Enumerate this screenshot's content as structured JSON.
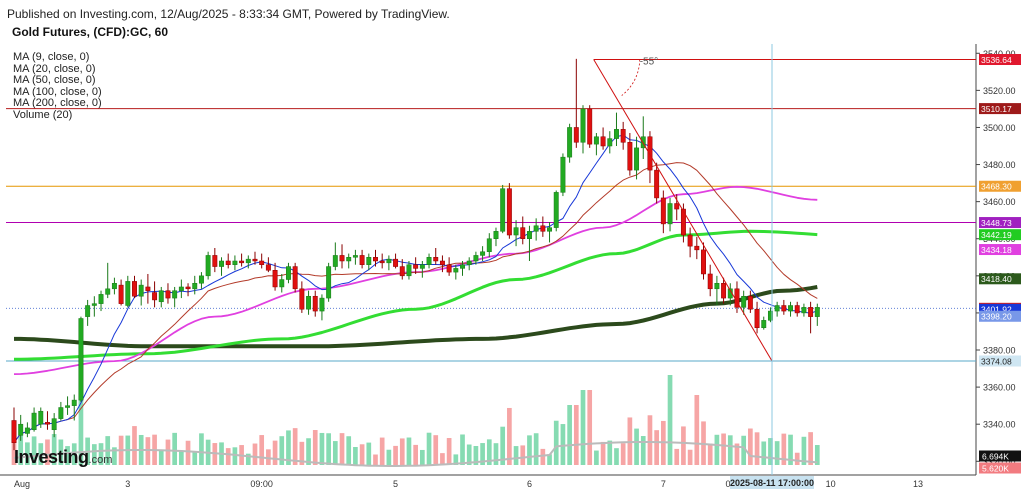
{
  "header": {
    "published": "Published on Investing.com, 12/Aug/2025 - 8:33:34 GMT, Powered by TradingView.",
    "instrument": "Gold Futures, (CFD):GC, 60"
  },
  "legend": [
    "MA (9, close, 0)",
    "MA (20, close, 0)",
    "MA (50, close, 0)",
    "MA (100, close, 0)",
    "MA (200, close, 0)",
    "Volume (20)"
  ],
  "brand": {
    "name": "Investing",
    "suffix": ".com"
  },
  "chart_data": {
    "type": "candlestick",
    "y_ticks": [
      "3540.00",
      "3520.00",
      "3500.00",
      "3480.00",
      "3460.00",
      "3440.00",
      "3420.00",
      "3400.00",
      "3380.00",
      "3360.00",
      "3340.00",
      "3320.00"
    ],
    "x_ticks": [
      "Aug",
      "3",
      "09:00",
      "5",
      "6",
      "7",
      "8",
      "10",
      "0",
      "13"
    ],
    "ylim": [
      3318,
      3545
    ],
    "candles": [
      {
        "o": 3342,
        "h": 3349,
        "l": 3326,
        "c": 3330
      },
      {
        "o": 3334,
        "h": 3345,
        "l": 3331,
        "c": 3340
      },
      {
        "o": 3335,
        "h": 3341,
        "l": 3333,
        "c": 3338
      },
      {
        "o": 3337,
        "h": 3349,
        "l": 3336,
        "c": 3346
      },
      {
        "o": 3340,
        "h": 3349,
        "l": 3338,
        "c": 3347
      },
      {
        "o": 3341,
        "h": 3347,
        "l": 3337,
        "c": 3340
      },
      {
        "o": 3337,
        "h": 3346,
        "l": 3333,
        "c": 3343
      },
      {
        "o": 3343,
        "h": 3352,
        "l": 3342,
        "c": 3349
      },
      {
        "o": 3349,
        "h": 3355,
        "l": 3345,
        "c": 3350
      },
      {
        "o": 3350,
        "h": 3356,
        "l": 3342,
        "c": 3353
      },
      {
        "o": 3353,
        "h": 3398,
        "l": 3352,
        "c": 3397
      },
      {
        "o": 3398,
        "h": 3407,
        "l": 3393,
        "c": 3404
      },
      {
        "o": 3404,
        "h": 3409,
        "l": 3398,
        "c": 3405
      },
      {
        "o": 3405,
        "h": 3412,
        "l": 3401,
        "c": 3410
      },
      {
        "o": 3410,
        "h": 3427,
        "l": 3408,
        "c": 3413
      },
      {
        "o": 3413,
        "h": 3419,
        "l": 3410,
        "c": 3416
      },
      {
        "o": 3415,
        "h": 3418,
        "l": 3404,
        "c": 3405
      },
      {
        "o": 3404,
        "h": 3420,
        "l": 3403,
        "c": 3417
      },
      {
        "o": 3417,
        "h": 3420,
        "l": 3408,
        "c": 3409
      },
      {
        "o": 3409,
        "h": 3418,
        "l": 3404,
        "c": 3415
      },
      {
        "o": 3414,
        "h": 3421,
        "l": 3405,
        "c": 3412
      },
      {
        "o": 3411,
        "h": 3417,
        "l": 3403,
        "c": 3407
      },
      {
        "o": 3406,
        "h": 3414,
        "l": 3403,
        "c": 3412
      },
      {
        "o": 3412,
        "h": 3416,
        "l": 3405,
        "c": 3408
      },
      {
        "o": 3408,
        "h": 3414,
        "l": 3403,
        "c": 3412
      },
      {
        "o": 3412,
        "h": 3418,
        "l": 3408,
        "c": 3414
      },
      {
        "o": 3414,
        "h": 3416,
        "l": 3409,
        "c": 3413
      },
      {
        "o": 3413,
        "h": 3420,
        "l": 3410,
        "c": 3416
      },
      {
        "o": 3416,
        "h": 3422,
        "l": 3413,
        "c": 3420
      },
      {
        "o": 3420,
        "h": 3433,
        "l": 3418,
        "c": 3431
      },
      {
        "o": 3431,
        "h": 3435,
        "l": 3422,
        "c": 3425
      },
      {
        "o": 3425,
        "h": 3430,
        "l": 3420,
        "c": 3428
      },
      {
        "o": 3428,
        "h": 3432,
        "l": 3424,
        "c": 3426
      },
      {
        "o": 3426,
        "h": 3431,
        "l": 3423,
        "c": 3428
      },
      {
        "o": 3428,
        "h": 3432,
        "l": 3425,
        "c": 3427
      },
      {
        "o": 3427,
        "h": 3431,
        "l": 3424,
        "c": 3429
      },
      {
        "o": 3429,
        "h": 3433,
        "l": 3426,
        "c": 3428
      },
      {
        "o": 3428,
        "h": 3432,
        "l": 3424,
        "c": 3426
      },
      {
        "o": 3426,
        "h": 3430,
        "l": 3422,
        "c": 3423
      },
      {
        "o": 3423,
        "h": 3427,
        "l": 3412,
        "c": 3414
      },
      {
        "o": 3414,
        "h": 3421,
        "l": 3411,
        "c": 3418
      },
      {
        "o": 3418,
        "h": 3427,
        "l": 3416,
        "c": 3425
      },
      {
        "o": 3425,
        "h": 3427,
        "l": 3411,
        "c": 3413
      },
      {
        "o": 3413,
        "h": 3417,
        "l": 3400,
        "c": 3402
      },
      {
        "o": 3402,
        "h": 3412,
        "l": 3399,
        "c": 3409
      },
      {
        "o": 3409,
        "h": 3412,
        "l": 3398,
        "c": 3401
      },
      {
        "o": 3401,
        "h": 3410,
        "l": 3396,
        "c": 3408
      },
      {
        "o": 3408,
        "h": 3427,
        "l": 3406,
        "c": 3425
      },
      {
        "o": 3425,
        "h": 3438,
        "l": 3423,
        "c": 3431
      },
      {
        "o": 3431,
        "h": 3437,
        "l": 3424,
        "c": 3428
      },
      {
        "o": 3428,
        "h": 3432,
        "l": 3424,
        "c": 3430
      },
      {
        "o": 3430,
        "h": 3434,
        "l": 3426,
        "c": 3431
      },
      {
        "o": 3431,
        "h": 3434,
        "l": 3424,
        "c": 3426
      },
      {
        "o": 3426,
        "h": 3432,
        "l": 3423,
        "c": 3430
      },
      {
        "o": 3430,
        "h": 3434,
        "l": 3425,
        "c": 3428
      },
      {
        "o": 3428,
        "h": 3432,
        "l": 3424,
        "c": 3427
      },
      {
        "o": 3427,
        "h": 3431,
        "l": 3423,
        "c": 3429
      },
      {
        "o": 3429,
        "h": 3432,
        "l": 3424,
        "c": 3425
      },
      {
        "o": 3425,
        "h": 3429,
        "l": 3418,
        "c": 3420
      },
      {
        "o": 3420,
        "h": 3428,
        "l": 3418,
        "c": 3426
      },
      {
        "o": 3426,
        "h": 3430,
        "l": 3421,
        "c": 3424
      },
      {
        "o": 3424,
        "h": 3428,
        "l": 3419,
        "c": 3426
      },
      {
        "o": 3426,
        "h": 3432,
        "l": 3424,
        "c": 3430
      },
      {
        "o": 3430,
        "h": 3435,
        "l": 3426,
        "c": 3428
      },
      {
        "o": 3428,
        "h": 3431,
        "l": 3422,
        "c": 3426
      },
      {
        "o": 3426,
        "h": 3430,
        "l": 3420,
        "c": 3422
      },
      {
        "o": 3422,
        "h": 3426,
        "l": 3418,
        "c": 3424
      },
      {
        "o": 3424,
        "h": 3428,
        "l": 3420,
        "c": 3426
      },
      {
        "o": 3426,
        "h": 3430,
        "l": 3423,
        "c": 3428
      },
      {
        "o": 3428,
        "h": 3433,
        "l": 3426,
        "c": 3431
      },
      {
        "o": 3431,
        "h": 3436,
        "l": 3428,
        "c": 3433
      },
      {
        "o": 3433,
        "h": 3443,
        "l": 3430,
        "c": 3440
      },
      {
        "o": 3440,
        "h": 3446,
        "l": 3436,
        "c": 3444
      },
      {
        "o": 3444,
        "h": 3469,
        "l": 3443,
        "c": 3467
      },
      {
        "o": 3467,
        "h": 3470,
        "l": 3440,
        "c": 3442
      },
      {
        "o": 3442,
        "h": 3450,
        "l": 3436,
        "c": 3446
      },
      {
        "o": 3446,
        "h": 3452,
        "l": 3437,
        "c": 3440
      },
      {
        "o": 3440,
        "h": 3447,
        "l": 3428,
        "c": 3444
      },
      {
        "o": 3444,
        "h": 3451,
        "l": 3439,
        "c": 3447
      },
      {
        "o": 3447,
        "h": 3452,
        "l": 3441,
        "c": 3444
      },
      {
        "o": 3444,
        "h": 3449,
        "l": 3438,
        "c": 3446
      },
      {
        "o": 3446,
        "h": 3466,
        "l": 3444,
        "c": 3465
      },
      {
        "o": 3465,
        "h": 3486,
        "l": 3463,
        "c": 3484
      },
      {
        "o": 3484,
        "h": 3502,
        "l": 3481,
        "c": 3500
      },
      {
        "o": 3500,
        "h": 3537,
        "l": 3489,
        "c": 3492
      },
      {
        "o": 3492,
        "h": 3512,
        "l": 3486,
        "c": 3510
      },
      {
        "o": 3510,
        "h": 3512,
        "l": 3489,
        "c": 3491
      },
      {
        "o": 3491,
        "h": 3497,
        "l": 3485,
        "c": 3495
      },
      {
        "o": 3495,
        "h": 3500,
        "l": 3488,
        "c": 3490
      },
      {
        "o": 3490,
        "h": 3498,
        "l": 3486,
        "c": 3494
      },
      {
        "o": 3494,
        "h": 3508,
        "l": 3490,
        "c": 3499
      },
      {
        "o": 3499,
        "h": 3503,
        "l": 3488,
        "c": 3492
      },
      {
        "o": 3492,
        "h": 3497,
        "l": 3474,
        "c": 3477
      },
      {
        "o": 3477,
        "h": 3495,
        "l": 3472,
        "c": 3489
      },
      {
        "o": 3489,
        "h": 3506,
        "l": 3483,
        "c": 3495
      },
      {
        "o": 3495,
        "h": 3498,
        "l": 3470,
        "c": 3477
      },
      {
        "o": 3477,
        "h": 3481,
        "l": 3459,
        "c": 3462
      },
      {
        "o": 3462,
        "h": 3466,
        "l": 3443,
        "c": 3448
      },
      {
        "o": 3448,
        "h": 3462,
        "l": 3444,
        "c": 3459
      },
      {
        "o": 3459,
        "h": 3464,
        "l": 3450,
        "c": 3456
      },
      {
        "o": 3456,
        "h": 3459,
        "l": 3438,
        "c": 3442
      },
      {
        "o": 3442,
        "h": 3446,
        "l": 3430,
        "c": 3436
      },
      {
        "o": 3436,
        "h": 3441,
        "l": 3429,
        "c": 3434
      },
      {
        "o": 3434,
        "h": 3438,
        "l": 3418,
        "c": 3421
      },
      {
        "o": 3421,
        "h": 3426,
        "l": 3409,
        "c": 3413
      },
      {
        "o": 3413,
        "h": 3420,
        "l": 3404,
        "c": 3416
      },
      {
        "o": 3416,
        "h": 3419,
        "l": 3405,
        "c": 3408
      },
      {
        "o": 3408,
        "h": 3416,
        "l": 3404,
        "c": 3413
      },
      {
        "o": 3413,
        "h": 3417,
        "l": 3400,
        "c": 3403
      },
      {
        "o": 3403,
        "h": 3412,
        "l": 3399,
        "c": 3409
      },
      {
        "o": 3409,
        "h": 3412,
        "l": 3400,
        "c": 3402
      },
      {
        "o": 3402,
        "h": 3406,
        "l": 3389,
        "c": 3392
      },
      {
        "o": 3392,
        "h": 3398,
        "l": 3391,
        "c": 3396
      },
      {
        "o": 3396,
        "h": 3403,
        "l": 3395,
        "c": 3401
      },
      {
        "o": 3401,
        "h": 3406,
        "l": 3398,
        "c": 3404
      },
      {
        "o": 3404,
        "h": 3407,
        "l": 3399,
        "c": 3401
      },
      {
        "o": 3401,
        "h": 3406,
        "l": 3398,
        "c": 3404
      },
      {
        "o": 3404,
        "h": 3406,
        "l": 3398,
        "c": 3400
      },
      {
        "o": 3400,
        "h": 3405,
        "l": 3398,
        "c": 3403
      },
      {
        "o": 3403,
        "h": 3406,
        "l": 3389,
        "c": 3398
      },
      {
        "o": 3398,
        "h": 3405,
        "l": 3393,
        "c": 3403
      }
    ],
    "horizontal_lines": [
      {
        "value": 3510.17,
        "color": "#b71c1c",
        "label": "3510.17"
      },
      {
        "value": 3468.3,
        "color": "#e69500",
        "label": "3468.30"
      },
      {
        "value": 3448.73,
        "color": "#b000b0",
        "label": "3448.73"
      },
      {
        "value": 3374.08,
        "color": "#5aa8c8",
        "label": "3374.08"
      }
    ],
    "price_labels": [
      {
        "value": 3536.64,
        "label": "3536.64",
        "bg": "#e0182e"
      },
      {
        "value": 3510.17,
        "label": "3510.17",
        "bg": "#9e1a1a"
      },
      {
        "value": 3468.3,
        "label": "3468.30",
        "bg": "#f0a030"
      },
      {
        "value": 3448.73,
        "label": "3448.73",
        "bg": "#a020c0"
      },
      {
        "value": 3442.19,
        "label": "3442.19",
        "bg": "#22cc22"
      },
      {
        "value": 3434.18,
        "label": "3434.18",
        "bg": "#e040e0"
      },
      {
        "value": 3418.4,
        "label": "3418.40",
        "bg": "#2c5a1c"
      },
      {
        "value": 3402.48,
        "label": "3402.48",
        "bg": "#cc2222"
      },
      {
        "value": 3401.92,
        "label": "3401.92",
        "bg": "#1838d8"
      },
      {
        "value": 3398.2,
        "label": "3398.20",
        "bg": "#7898e8"
      },
      {
        "value": 3374.08,
        "label": "3374.08",
        "bg": "#cfe6f2",
        "fg": "#222"
      }
    ],
    "volume_labels": [
      {
        "label": "6.694K",
        "bg": "#111111"
      },
      {
        "label": "5.620K",
        "bg": "#f27b80"
      }
    ],
    "crosshair": {
      "time_label": "2025-08-11 17:00:00"
    },
    "angle_label": "-55°",
    "colors": {
      "up": "#22aa22",
      "down": "#e01010",
      "ma9": "#1838d8",
      "ma20": "#b33b2a",
      "ma50": "#e040e0",
      "ma100": "#33dd33",
      "ma200": "#2c4a1c",
      "vol_up": "#86dbb2",
      "vol_down": "#f6a5a5"
    }
  }
}
